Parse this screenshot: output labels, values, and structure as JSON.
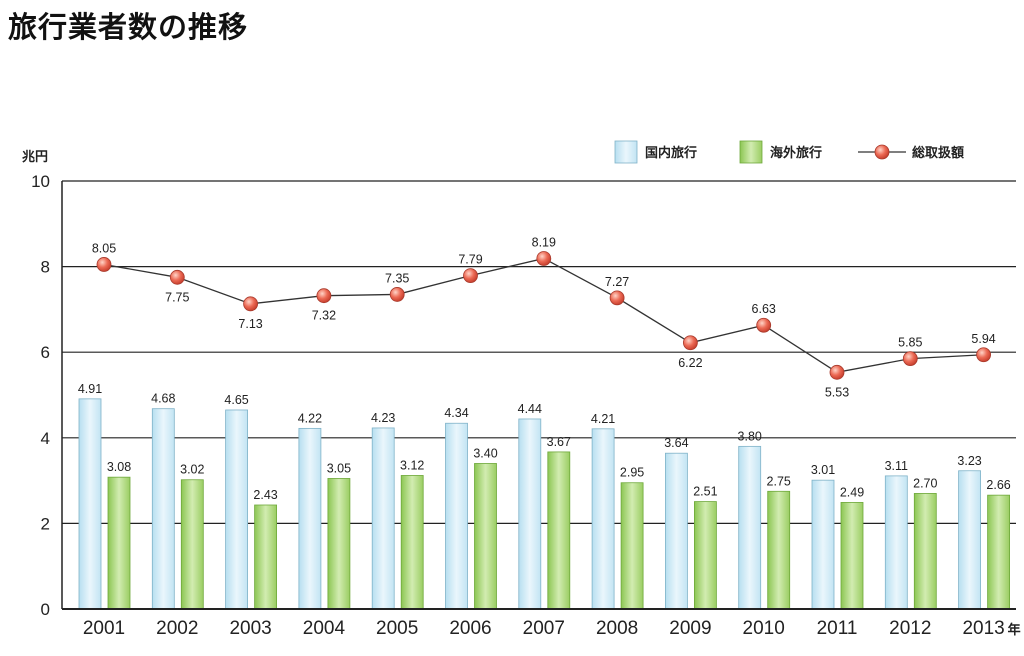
{
  "page": {
    "title": "旅行業者数の推移"
  },
  "chart_data": {
    "type": "bar",
    "title": "",
    "ylabel": "兆円",
    "xunit": "年",
    "ylim": [
      0,
      10
    ],
    "yticks": [
      0,
      2,
      4,
      6,
      8,
      10
    ],
    "grid": true,
    "legend_position": "top-right",
    "categories": [
      "2001",
      "2002",
      "2003",
      "2004",
      "2005",
      "2006",
      "2007",
      "2008",
      "2009",
      "2010",
      "2011",
      "2012",
      "2013"
    ],
    "series": [
      {
        "name": "国内旅行",
        "type": "bar",
        "color": "#cfeaf6",
        "values": [
          4.91,
          4.68,
          4.65,
          4.22,
          4.23,
          4.34,
          4.44,
          4.21,
          3.64,
          3.8,
          3.01,
          3.11,
          3.23
        ]
      },
      {
        "name": "海外旅行",
        "type": "bar",
        "color": "#a9d677",
        "values": [
          3.08,
          3.02,
          2.43,
          3.05,
          3.12,
          3.4,
          3.67,
          2.95,
          2.51,
          2.75,
          2.49,
          2.7,
          2.66
        ]
      },
      {
        "name": "総取扱額",
        "type": "line",
        "color": "#e0574a",
        "values": [
          8.05,
          7.75,
          7.13,
          7.32,
          7.35,
          7.79,
          8.19,
          7.27,
          6.22,
          6.63,
          5.53,
          5.85,
          5.94
        ]
      }
    ]
  }
}
